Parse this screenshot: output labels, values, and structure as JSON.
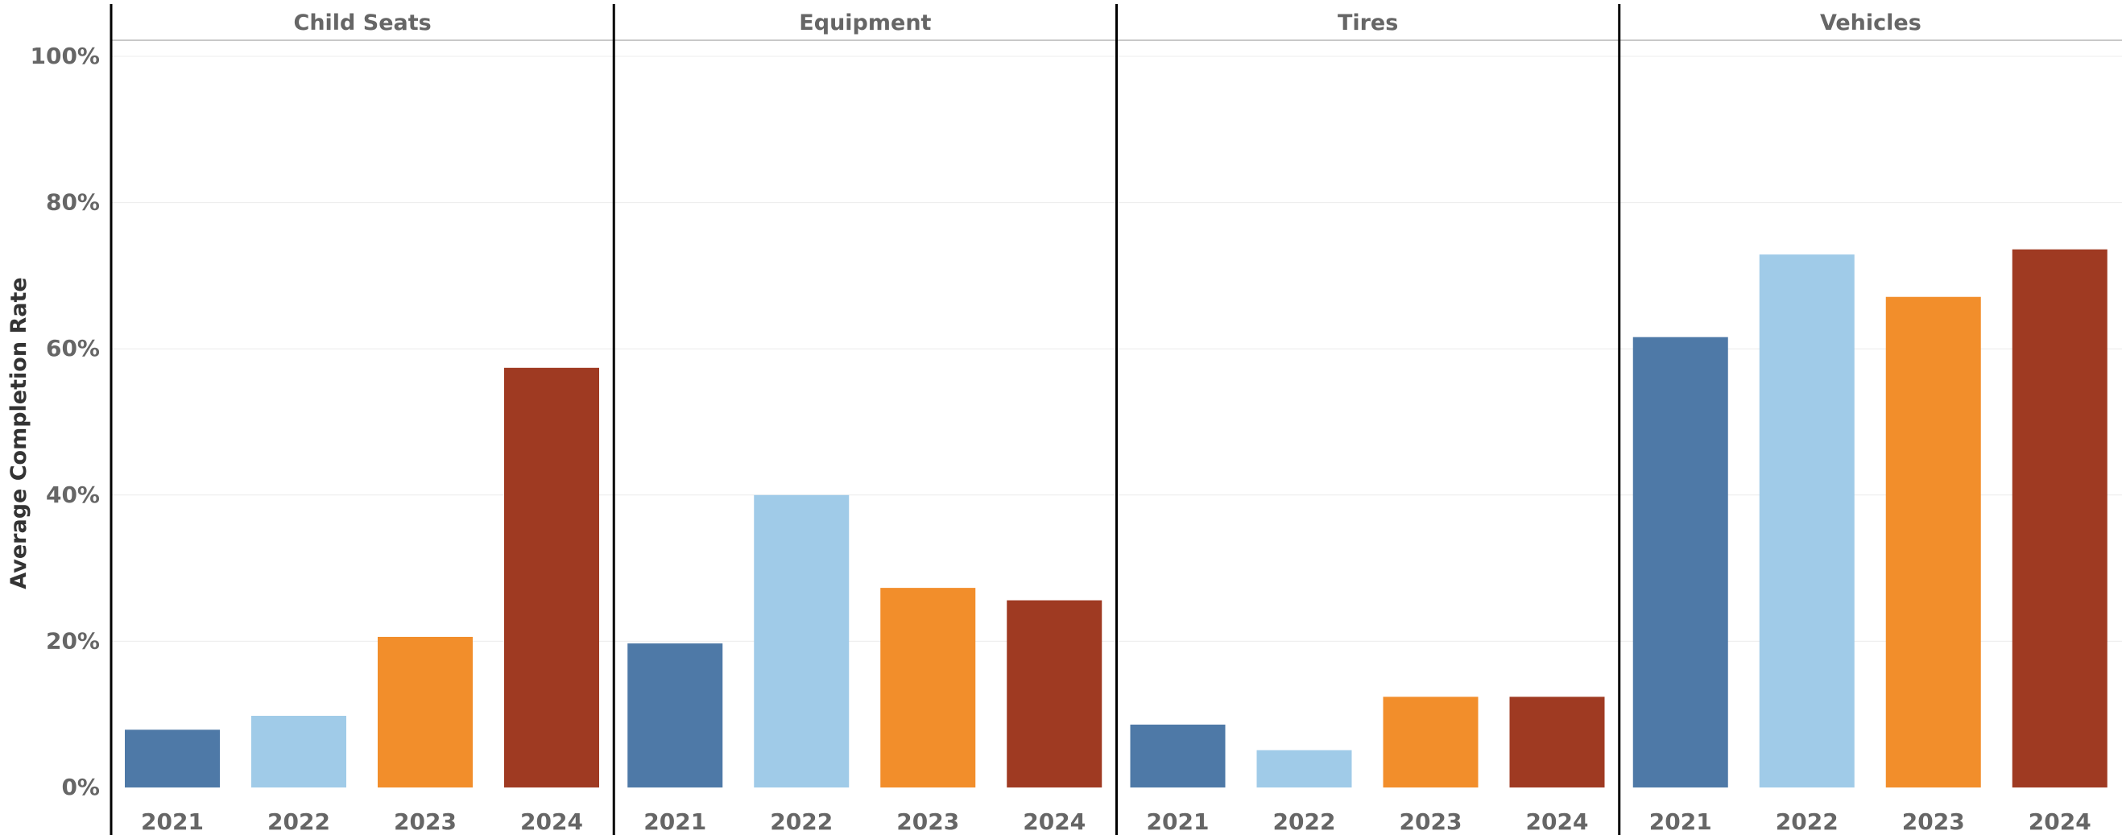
{
  "chart_data": {
    "type": "bar",
    "title": "",
    "xlabel": "",
    "ylabel": "Average Completion Rate",
    "ylim": [
      0,
      100
    ],
    "yticks": [
      "0%",
      "20%",
      "40%",
      "60%",
      "80%",
      "100%"
    ],
    "ytick_values": [
      0,
      20,
      40,
      60,
      80,
      100
    ],
    "grid": true,
    "legend": "none",
    "categories": [
      "2021",
      "2022",
      "2023",
      "2024"
    ],
    "colors": {
      "2021": "#4e79a7",
      "2022": "#a0cbe8",
      "2023": "#f28e2b",
      "2024": "#9f3a22"
    },
    "panels": [
      {
        "name": "Child Seats",
        "values": [
          7.9,
          9.8,
          20.6,
          57.4
        ]
      },
      {
        "name": "Equipment",
        "values": [
          19.7,
          40.0,
          27.3,
          25.6
        ]
      },
      {
        "name": "Tires",
        "values": [
          8.6,
          5.1,
          12.4,
          12.4
        ]
      },
      {
        "name": "Vehicles",
        "values": [
          61.6,
          72.9,
          67.1,
          73.6
        ]
      }
    ]
  }
}
